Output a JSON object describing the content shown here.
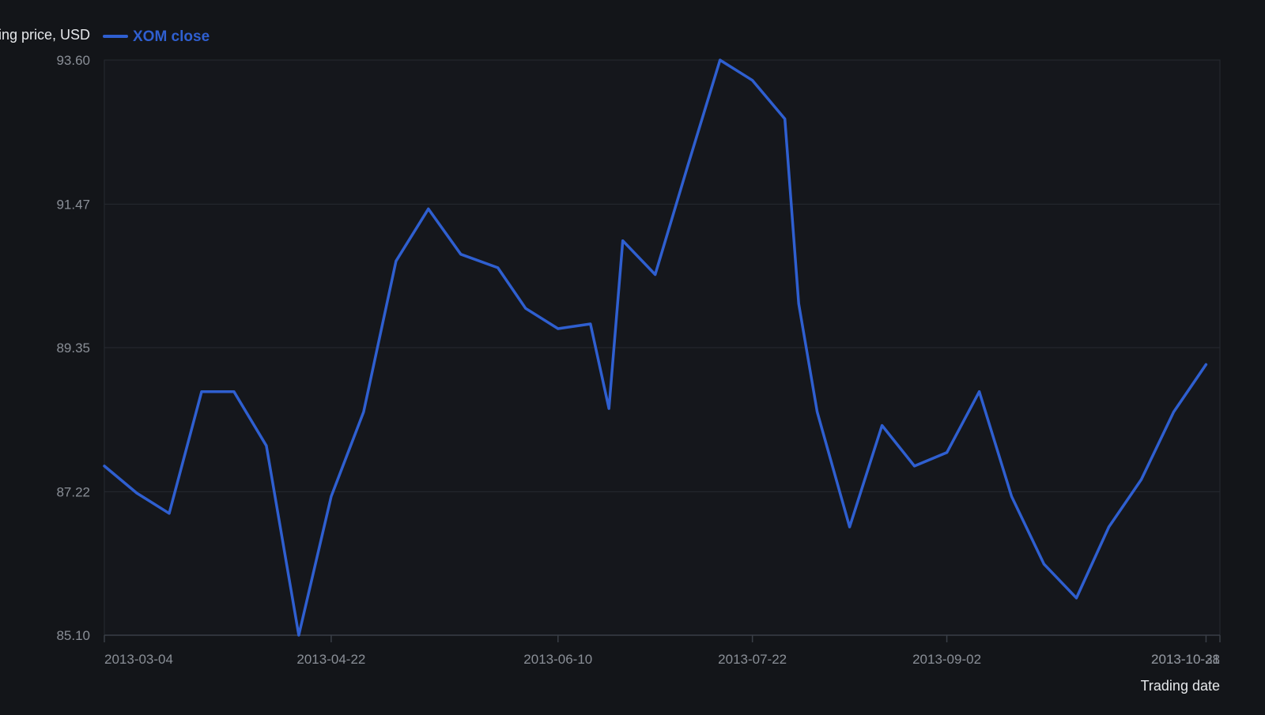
{
  "colors": {
    "background": "#131519",
    "plot_background": "#15171c",
    "series": "#2f5fd0",
    "grid": "#262a31",
    "axis": "#3a3f47",
    "tick_text": "#8a8f97",
    "label_text": "#e6e8eb"
  },
  "chart_data": {
    "type": "line",
    "title": "",
    "xlabel": "Trading date",
    "ylabel": "Closing price, USD",
    "ylim": [
      85.1,
      93.6
    ],
    "y_ticks": [
      "85.10",
      "87.22",
      "89.35",
      "91.47",
      "93.60"
    ],
    "x_ticks": [
      "2013-03-04",
      "2013-04-22",
      "2013-06-10",
      "2013-07-22",
      "2013-09-02",
      "2013-10-28",
      "2013-10-31"
    ],
    "grid": true,
    "legend_position": "top-left",
    "series": [
      {
        "name": "XOM close",
        "x": [
          "2013-03-04",
          "2013-03-11",
          "2013-03-18",
          "2013-03-25",
          "2013-04-01",
          "2013-04-08",
          "2013-04-15",
          "2013-04-22",
          "2013-04-29",
          "2013-05-06",
          "2013-05-13",
          "2013-05-20",
          "2013-05-28",
          "2013-06-03",
          "2013-06-10",
          "2013-06-17",
          "2013-06-21",
          "2013-06-24",
          "2013-07-01",
          "2013-07-08",
          "2013-07-15",
          "2013-07-22",
          "2013-07-29",
          "2013-08-01",
          "2013-08-05",
          "2013-08-12",
          "2013-08-19",
          "2013-08-26",
          "2013-09-02",
          "2013-09-09",
          "2013-09-16",
          "2013-09-23",
          "2013-09-30",
          "2013-10-07",
          "2013-10-14",
          "2013-10-21",
          "2013-10-28",
          "2013-10-31"
        ],
        "values": [
          87.6,
          87.2,
          86.9,
          88.7,
          88.7,
          87.9,
          85.1,
          87.15,
          88.4,
          90.63,
          91.4,
          90.73,
          90.53,
          89.93,
          89.63,
          89.7,
          88.45,
          90.93,
          90.43,
          92.03,
          93.6,
          93.3,
          92.73,
          90.0,
          88.4,
          86.7,
          88.2,
          87.6,
          87.8,
          88.7,
          87.15,
          86.15,
          85.65,
          86.7,
          87.4,
          88.4,
          89.1,
          null
        ]
      }
    ]
  }
}
